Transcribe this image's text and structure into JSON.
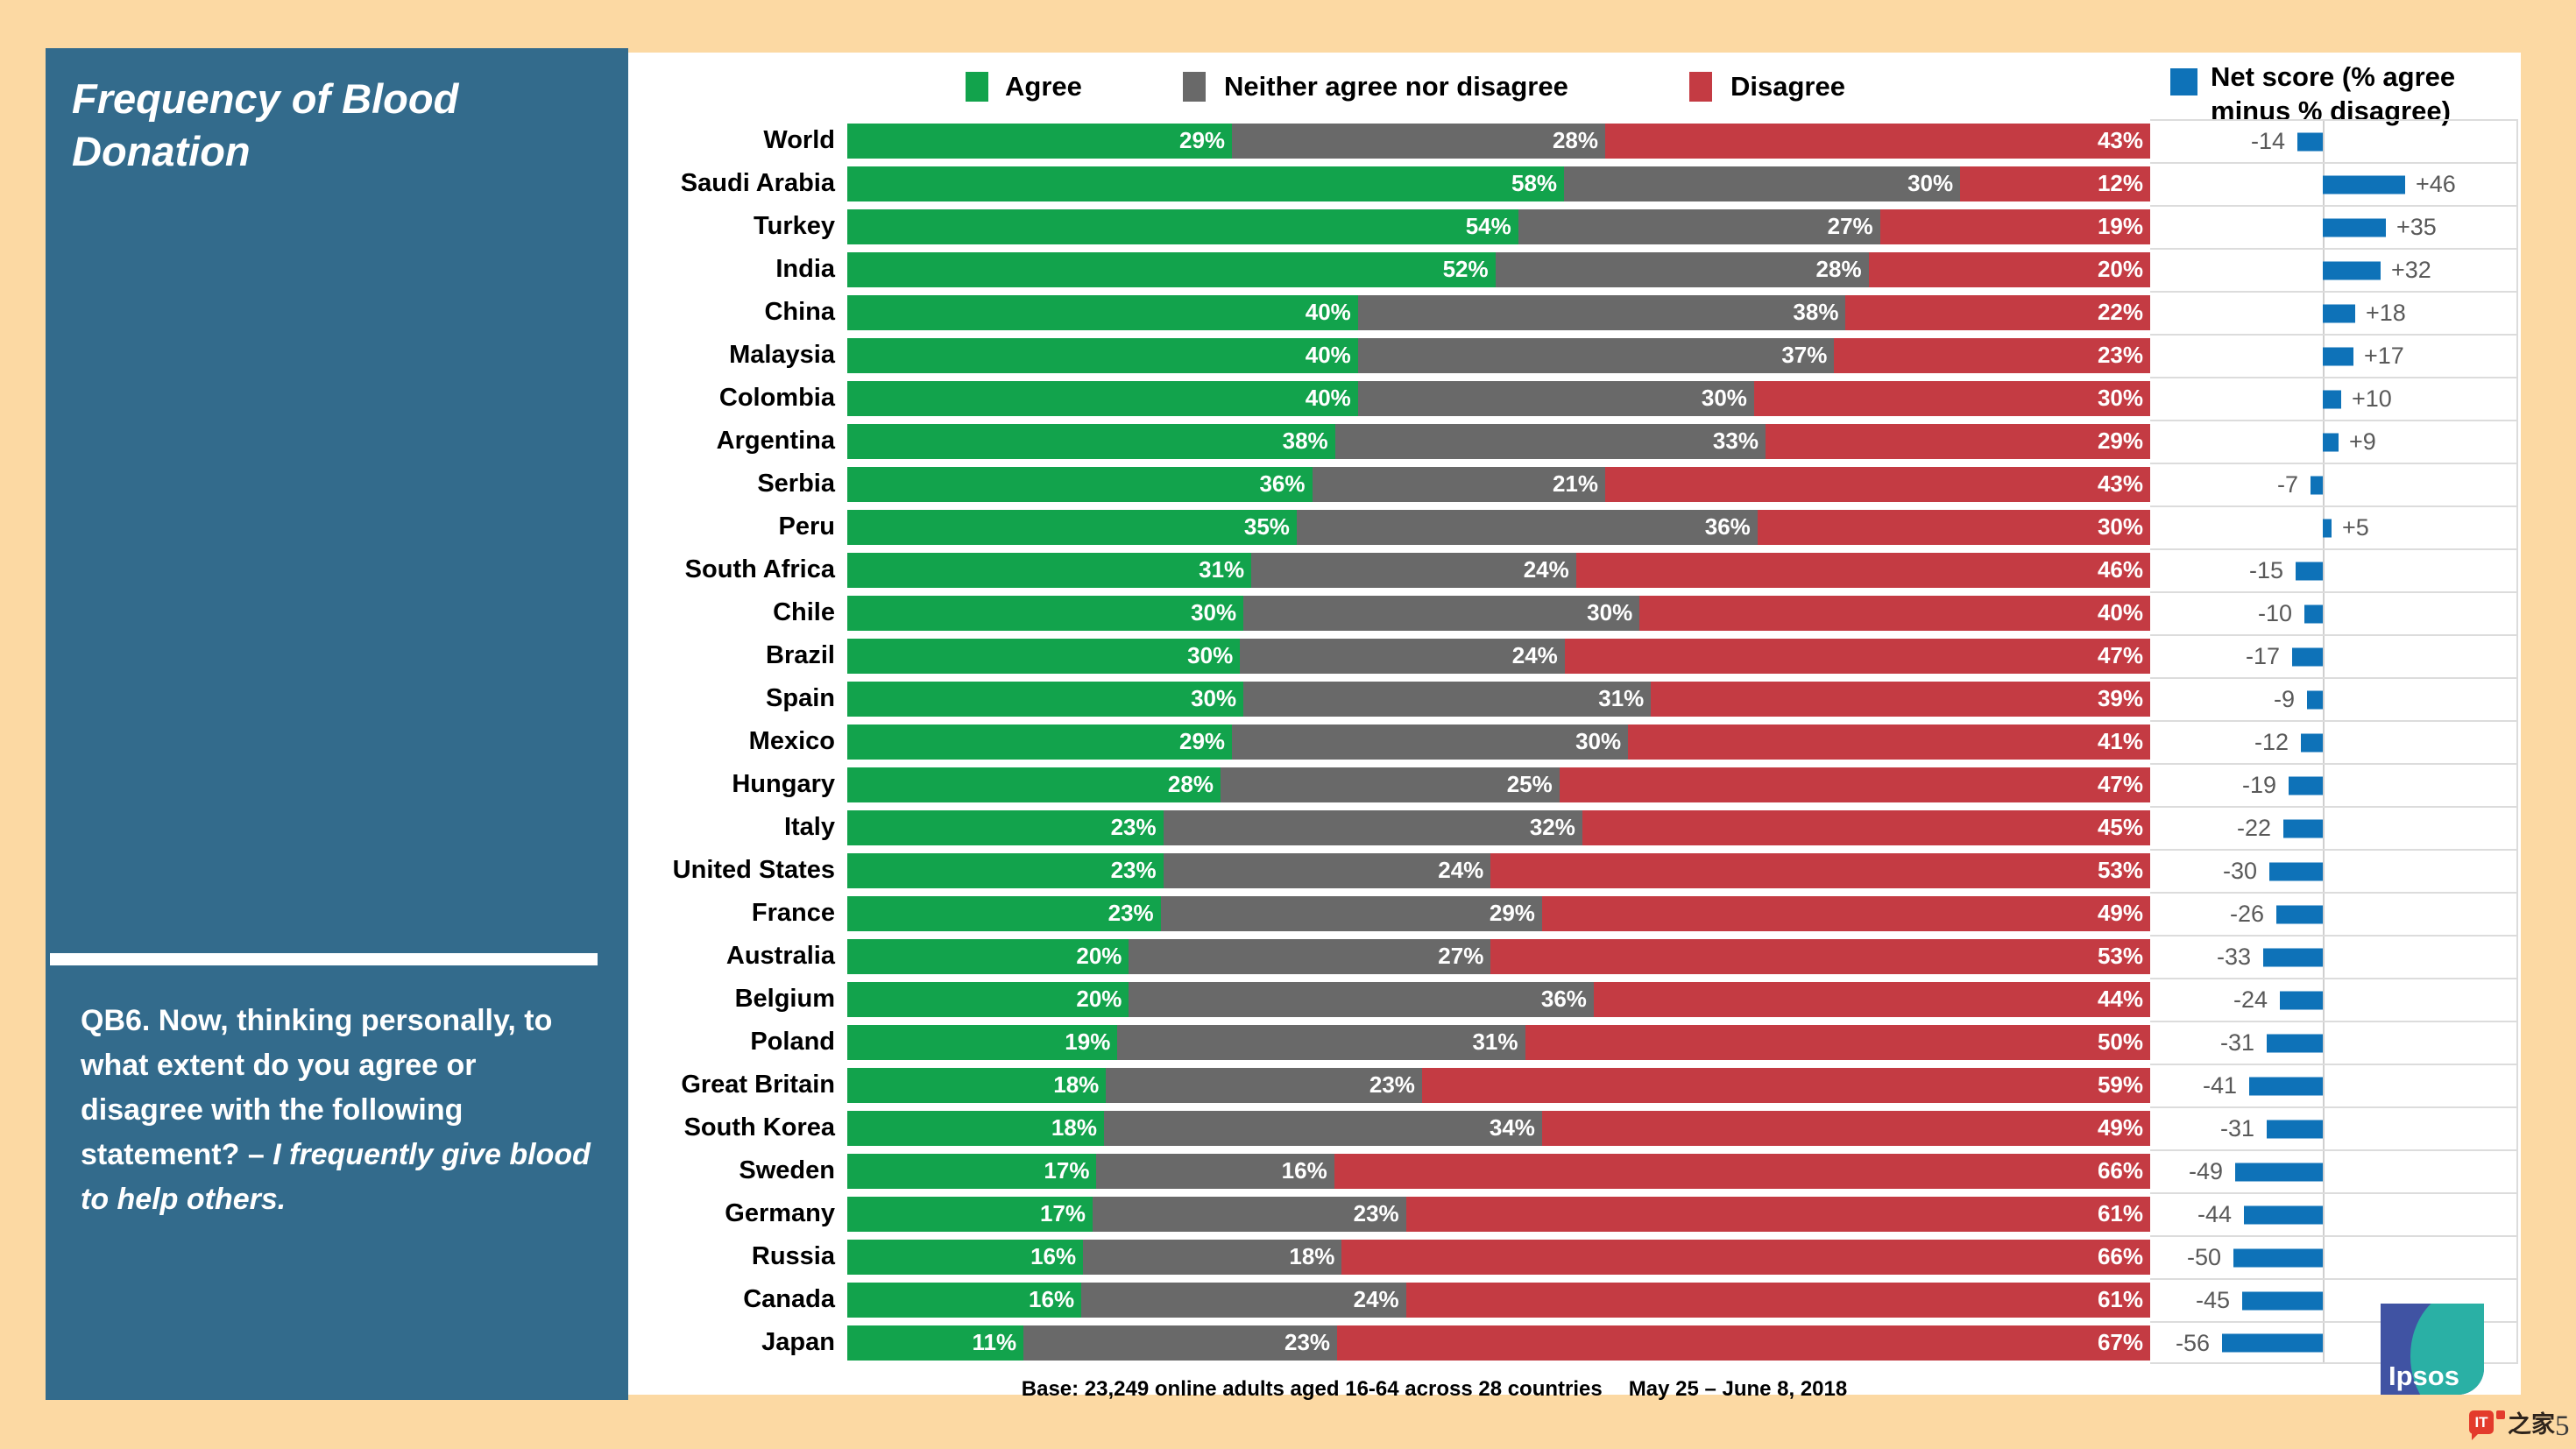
{
  "sidebar": {
    "title": "Frequency of Blood Donation",
    "question_prefix": "QB6. Now, thinking personally, to what extent do you agree or disagree with the following statement? – ",
    "question_statement": "I frequently give blood to help others."
  },
  "legend": {
    "agree": "Agree",
    "neither": "Neither agree nor disagree",
    "disagree": "Disagree",
    "net_line1": "Net score (% agree",
    "net_line2": "minus % disagree)"
  },
  "footer": {
    "base_note": "Base: 23,249 online adults aged 16-64 across 28 countries",
    "dates": "May 25 – June 8, 2018"
  },
  "logo": {
    "text": "Ipsos"
  },
  "watermark": {
    "badge": "IT",
    "suffix": "之家",
    "page_number": "5"
  },
  "colors": {
    "background": "#fcd9a3",
    "sidebar": "#336b8c",
    "agree": "#12a34c",
    "neither": "#696969",
    "disagree": "#c43b43",
    "net": "#0e72b8",
    "gridline": "#dcdcdc",
    "net_label": "#595959"
  },
  "chart_data": {
    "type": "bar",
    "orientation": "horizontal-stacked",
    "title": "Frequency of Blood Donation",
    "value_suffix": "%",
    "xlim": [
      0,
      100
    ],
    "categories": [
      "World",
      "Saudi Arabia",
      "Turkey",
      "India",
      "China",
      "Malaysia",
      "Colombia",
      "Argentina",
      "Serbia",
      "Peru",
      "South Africa",
      "Chile",
      "Brazil",
      "Spain",
      "Mexico",
      "Hungary",
      "Italy",
      "United States",
      "France",
      "Australia",
      "Belgium",
      "Poland",
      "Great Britain",
      "South Korea",
      "Sweden",
      "Germany",
      "Russia",
      "Canada",
      "Japan"
    ],
    "series": [
      {
        "name": "Agree",
        "color": "#12a34c",
        "values": [
          29,
          58,
          54,
          52,
          40,
          40,
          40,
          38,
          36,
          35,
          31,
          30,
          30,
          30,
          29,
          28,
          23,
          23,
          23,
          20,
          20,
          19,
          18,
          18,
          17,
          17,
          16,
          16,
          11
        ]
      },
      {
        "name": "Neither agree nor disagree",
        "color": "#696969",
        "values": [
          28,
          30,
          27,
          28,
          38,
          37,
          30,
          33,
          21,
          36,
          24,
          30,
          24,
          31,
          30,
          25,
          32,
          24,
          29,
          27,
          36,
          31,
          23,
          34,
          16,
          23,
          18,
          24,
          23
        ]
      },
      {
        "name": "Disagree",
        "color": "#c43b43",
        "values": [
          43,
          12,
          19,
          20,
          22,
          23,
          30,
          29,
          43,
          30,
          46,
          40,
          47,
          39,
          41,
          47,
          45,
          53,
          49,
          53,
          44,
          50,
          59,
          49,
          66,
          61,
          66,
          61,
          67
        ]
      }
    ],
    "net_series": {
      "name": "Net score (% agree minus % disagree)",
      "color": "#0e72b8",
      "values": [
        -14,
        46,
        35,
        32,
        18,
        17,
        10,
        9,
        -7,
        5,
        -15,
        -10,
        -17,
        -9,
        -12,
        -19,
        -22,
        -30,
        -26,
        -33,
        -24,
        -31,
        -41,
        -31,
        -49,
        -44,
        -50,
        -45,
        -56
      ]
    },
    "legend_position": "top",
    "grid": "net-section-only"
  }
}
